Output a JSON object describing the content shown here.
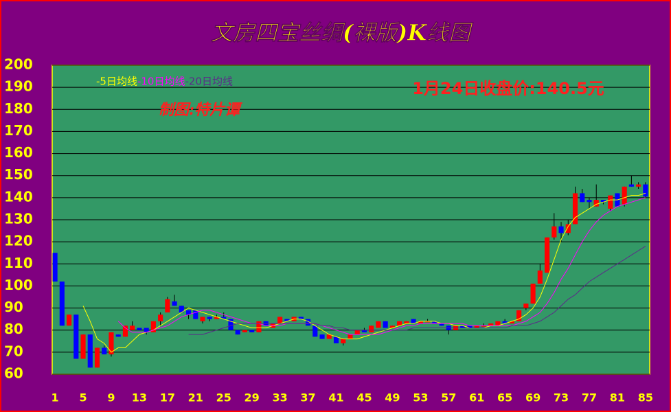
{
  "chart_data": {
    "type": "candlestick",
    "title": "文房四宝丝绸(裸版)K线图",
    "annotation": "1月24日收盘价:140.5元",
    "credit": "制图:特片谭",
    "x": [
      1,
      2,
      3,
      4,
      5,
      6,
      7,
      8,
      9,
      10,
      11,
      12,
      13,
      14,
      15,
      16,
      17,
      18,
      19,
      20,
      21,
      22,
      23,
      24,
      25,
      26,
      27,
      28,
      29,
      30,
      31,
      32,
      33,
      34,
      35,
      36,
      37,
      38,
      39,
      40,
      41,
      42,
      43,
      44,
      45,
      46,
      47,
      48,
      49,
      50,
      51,
      52,
      53,
      54,
      55,
      56,
      57,
      58,
      59,
      60,
      61,
      62,
      63,
      64,
      65,
      66,
      67,
      68,
      69,
      70,
      71,
      72,
      73,
      74,
      75,
      76,
      77,
      78,
      79,
      80,
      81,
      82,
      83,
      84,
      85
    ],
    "ohlc": [
      [
        115,
        115,
        102,
        102
      ],
      [
        102,
        102,
        82,
        82
      ],
      [
        82,
        87,
        82,
        87
      ],
      [
        87,
        87,
        67,
        67
      ],
      [
        67,
        78,
        67,
        78
      ],
      [
        78,
        78,
        63,
        63
      ],
      [
        63,
        72,
        63,
        72
      ],
      [
        72,
        73,
        69,
        69
      ],
      [
        69,
        79,
        68,
        79
      ],
      [
        78,
        78,
        77,
        77
      ],
      [
        77,
        82,
        77,
        82
      ],
      [
        80,
        84,
        80,
        82
      ],
      [
        81,
        81,
        80,
        80
      ],
      [
        81,
        81,
        78,
        79
      ],
      [
        79,
        84,
        79,
        84
      ],
      [
        84,
        88,
        82,
        87
      ],
      [
        88,
        95,
        88,
        94
      ],
      [
        93,
        96,
        91,
        91
      ],
      [
        91,
        91,
        88,
        88
      ],
      [
        89,
        89,
        85,
        87
      ],
      [
        89,
        89,
        85,
        85
      ],
      [
        84,
        86,
        83,
        86
      ],
      [
        86,
        86,
        84,
        85
      ],
      [
        85,
        87,
        85,
        86
      ],
      [
        86,
        88,
        85,
        85
      ],
      [
        85,
        85,
        80,
        80
      ],
      [
        80,
        80,
        78,
        78
      ],
      [
        79,
        80,
        79,
        80
      ],
      [
        80,
        80,
        79,
        79
      ],
      [
        79,
        84,
        79,
        84
      ],
      [
        84,
        84,
        82,
        82
      ],
      [
        81,
        83,
        81,
        83
      ],
      [
        83,
        86,
        83,
        86
      ],
      [
        85,
        85,
        84,
        84
      ],
      [
        84,
        86,
        84,
        86
      ],
      [
        86,
        86,
        85,
        85
      ],
      [
        85,
        85,
        82,
        82
      ],
      [
        82,
        82,
        77,
        77
      ],
      [
        78,
        78,
        76,
        76
      ],
      [
        76,
        78,
        76,
        78
      ],
      [
        77,
        77,
        74,
        74
      ],
      [
        74,
        76,
        73,
        76
      ],
      [
        76,
        78,
        76,
        78
      ],
      [
        78,
        80,
        78,
        80
      ],
      [
        80,
        81,
        79,
        79
      ],
      [
        79,
        82,
        79,
        82
      ],
      [
        81,
        84,
        81,
        84
      ],
      [
        84,
        84,
        81,
        81
      ],
      [
        81,
        82,
        81,
        82
      ],
      [
        82,
        84,
        82,
        84
      ],
      [
        83,
        84,
        83,
        84
      ],
      [
        85,
        85,
        83,
        83
      ],
      [
        83,
        84,
        83,
        84
      ],
      [
        84,
        85,
        84,
        84
      ],
      [
        84,
        84,
        83,
        83
      ],
      [
        83,
        83,
        82,
        82
      ],
      [
        82,
        82,
        78,
        80
      ],
      [
        80,
        82,
        80,
        82
      ],
      [
        82,
        82,
        81,
        81
      ],
      [
        82,
        82,
        81,
        81
      ],
      [
        81,
        82,
        81,
        82
      ],
      [
        82,
        83,
        82,
        82
      ],
      [
        82,
        83,
        82,
        83
      ],
      [
        82,
        84,
        82,
        84
      ],
      [
        84,
        85,
        83,
        83
      ],
      [
        83,
        84,
        83,
        84
      ],
      [
        84,
        89,
        84,
        89
      ],
      [
        90,
        92,
        89,
        92
      ],
      [
        92,
        101,
        92,
        101
      ],
      [
        101,
        110,
        101,
        107
      ],
      [
        106,
        122,
        106,
        122
      ],
      [
        122,
        133,
        121,
        127
      ],
      [
        127,
        129,
        120,
        124
      ],
      [
        124,
        130,
        123,
        128
      ],
      [
        128,
        145,
        128,
        142
      ],
      [
        142,
        144,
        138,
        138
      ],
      [
        139,
        140,
        135,
        138
      ],
      [
        136,
        146,
        136,
        139
      ],
      [
        139,
        139,
        137,
        138
      ],
      [
        135,
        141,
        134,
        141
      ],
      [
        142,
        142,
        136,
        136
      ],
      [
        137,
        145,
        136,
        145
      ],
      [
        146,
        150,
        145,
        145
      ],
      [
        145,
        147,
        144,
        146
      ],
      [
        146,
        147,
        140,
        140.5
      ]
    ],
    "up_color": "#ff0000",
    "down_color": "#0000ff",
    "series": [
      {
        "name": "-5日均线",
        "color": "#ffff00",
        "values": [
          null,
          null,
          null,
          null,
          91,
          84,
          76,
          74,
          70,
          72,
          72,
          75,
          78,
          79,
          80,
          82,
          84,
          86,
          88,
          90,
          89,
          88,
          87,
          86,
          85,
          84,
          83,
          82,
          81,
          81,
          81,
          82,
          83,
          84,
          85,
          85,
          84,
          82,
          80,
          78,
          77,
          76,
          76,
          76,
          77,
          78,
          79,
          80,
          81,
          82,
          83,
          83,
          84,
          84,
          84,
          83,
          83,
          82,
          82,
          81,
          81,
          81,
          82,
          82,
          83,
          84,
          85,
          87,
          90,
          95,
          103,
          112,
          121,
          127,
          131,
          133,
          135,
          137,
          138,
          139,
          139,
          140,
          141,
          141,
          142
        ]
      },
      {
        "name": "-10日均线",
        "color": "#ff00ff",
        "values": [
          null,
          null,
          null,
          null,
          null,
          null,
          null,
          null,
          null,
          84,
          81,
          79,
          79,
          79,
          80,
          81,
          82,
          84,
          86,
          87,
          88,
          89,
          89,
          88,
          87,
          86,
          85,
          84,
          83,
          83,
          82,
          82,
          82,
          83,
          83,
          83,
          83,
          83,
          82,
          81,
          80,
          79,
          78,
          78,
          78,
          78,
          78,
          79,
          80,
          81,
          82,
          82,
          83,
          83,
          83,
          83,
          83,
          83,
          83,
          82,
          82,
          82,
          82,
          82,
          82,
          82,
          83,
          84,
          86,
          88,
          92,
          97,
          103,
          108,
          114,
          120,
          125,
          129,
          132,
          134,
          136,
          137,
          138,
          139,
          140
        ]
      },
      {
        "name": "-20日均线",
        "color": "#5c2a8a",
        "values": [
          null,
          null,
          null,
          null,
          null,
          null,
          null,
          null,
          null,
          null,
          null,
          null,
          null,
          null,
          null,
          null,
          null,
          null,
          null,
          78,
          78,
          78,
          79,
          80,
          81,
          82,
          83,
          83,
          83,
          83,
          83,
          83,
          83,
          83,
          83,
          83,
          83,
          83,
          82,
          82,
          81,
          81,
          80,
          80,
          80,
          80,
          80,
          80,
          80,
          80,
          80,
          81,
          81,
          81,
          81,
          81,
          81,
          81,
          81,
          81,
          81,
          81,
          81,
          81,
          81,
          82,
          82,
          82,
          83,
          84,
          86,
          88,
          91,
          94,
          96,
          99,
          102,
          104,
          106,
          108,
          110,
          112,
          114,
          116,
          118
        ]
      }
    ],
    "xlim": [
      0.6,
      85.6
    ],
    "xticks": [
      1,
      5,
      9,
      13,
      17,
      21,
      25,
      29,
      33,
      37,
      41,
      45,
      49,
      53,
      57,
      61,
      65,
      69,
      73,
      77,
      81,
      85
    ],
    "ylim": [
      60,
      200
    ],
    "yticks": [
      60,
      70,
      80,
      90,
      100,
      110,
      120,
      130,
      140,
      150,
      160,
      170,
      180,
      190,
      200
    ],
    "grid": true
  }
}
